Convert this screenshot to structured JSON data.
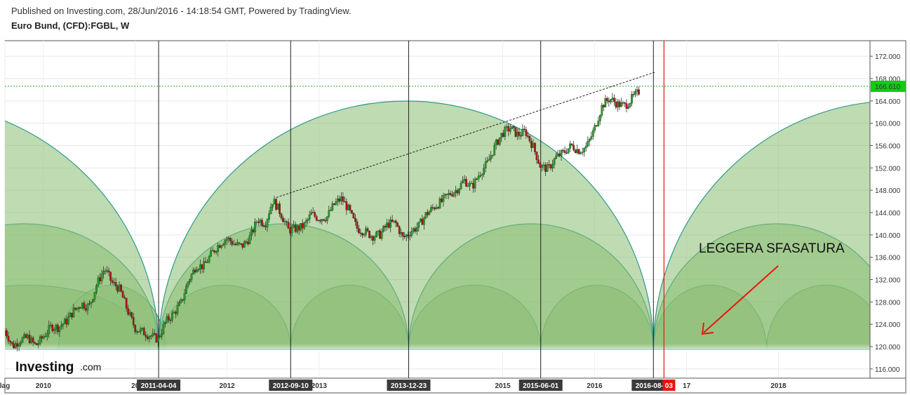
{
  "header": {
    "published": "Published on Investing.com, 28/Jun/2016 - 14:18:54 GMT, Powered by TradingView.",
    "instrument": "Euro Bund, (CFD):FGBL, W"
  },
  "logo": {
    "brand": "Investing",
    "suffix": ".com"
  },
  "annotation": {
    "text": "LEGGERA SFASATURA",
    "arrow_color": "#e8160c"
  },
  "colors": {
    "up": "#1f9e1f",
    "down": "#b21414",
    "cycle_fill": "#8bbd73",
    "cycle_stroke": "#2e9a8a",
    "price_line": "#22aa22",
    "red_line": "#e8160c"
  },
  "chart_data": {
    "type": "candlestick",
    "ylim": [
      115,
      173.5
    ],
    "y_ticks": [
      "172.000",
      "168.000",
      "164.000",
      "160.000",
      "156.000",
      "152.000",
      "148.000",
      "144.000",
      "140.000",
      "136.000",
      "132.000",
      "128.000",
      "124.000",
      "120.000",
      "116.000"
    ],
    "y_tick_values": [
      172,
      168,
      164,
      160,
      156,
      152,
      148,
      144,
      140,
      136,
      132,
      128,
      124,
      120,
      116
    ],
    "x_start": "2009-08-01",
    "x_end": "2018-12-31",
    "x_ticks": [
      {
        "label": "lag",
        "date": "2009-08-01"
      },
      {
        "label": "2010",
        "date": "2010-01-01"
      },
      {
        "label": "20",
        "date": "2011-01-01"
      },
      {
        "label": "2012",
        "date": "2012-01-01"
      },
      {
        "label": "2013",
        "date": "2013-01-01"
      },
      {
        "label": "2015",
        "date": "2015-01-01"
      },
      {
        "label": "2016",
        "date": "2016-01-01"
      },
      {
        "label": "17",
        "date": "2017-01-01"
      },
      {
        "label": "2018",
        "date": "2018-01-01"
      }
    ],
    "vertical_markers": [
      {
        "label": "2011-04-04",
        "date": "2011-04-04"
      },
      {
        "label": "2012-09-10",
        "date": "2012-09-10"
      },
      {
        "label": "2013-12-23",
        "date": "2013-12-23"
      },
      {
        "label": "2015-06-01",
        "date": "2015-06-01"
      },
      {
        "label": "2016-08-22",
        "date": "2016-08-22"
      }
    ],
    "red_marker": {
      "label": "03",
      "date": "2016-10-03"
    },
    "current_price": {
      "label": "166.610",
      "value": 166.61
    },
    "trendline": [
      {
        "date": "2012-07-15",
        "value": 146.7
      },
      {
        "date": "2016-09-01",
        "value": 169.2
      }
    ],
    "cycles": [
      {
        "start": "2008-07-01",
        "end": "2011-03-01",
        "peak": 131
      },
      {
        "start": "2010-03-01",
        "end": "2011-05-01",
        "peak": 131
      },
      {
        "start": "2011-04-01",
        "end": "2012-09-10",
        "peak": 131
      },
      {
        "start": "2012-09-10",
        "end": "2013-12-23",
        "peak": 131
      },
      {
        "start": "2013-12-23",
        "end": "2015-06-01",
        "peak": 131
      },
      {
        "start": "2015-06-01",
        "end": "2016-08-22",
        "peak": 131
      },
      {
        "start": "2016-08-22",
        "end": "2017-11-15",
        "peak": 131
      },
      {
        "start": "2017-11-15",
        "end": "2019-03-01",
        "peak": 131
      },
      {
        "start": "2008-05-01",
        "end": "2011-04-04",
        "peak": 142
      },
      {
        "start": "2011-04-04",
        "end": "2013-12-23",
        "peak": 142
      },
      {
        "start": "2013-12-23",
        "end": "2016-08-22",
        "peak": 142
      },
      {
        "start": "2016-08-22",
        "end": "2019-05-01",
        "peak": 142
      },
      {
        "start": "2005-10-01",
        "end": "2011-04-04",
        "peak": 164
      },
      {
        "start": "2011-04-04",
        "end": "2016-08-22",
        "peak": 164
      },
      {
        "start": "2016-08-22",
        "end": "2021-12-01",
        "peak": 164
      }
    ],
    "cycle_base": 119.5,
    "price_path": [
      [
        "2009-08-01",
        122.0
      ],
      [
        "2009-09-01",
        119.5
      ],
      [
        "2009-10-01",
        121.5
      ],
      [
        "2009-11-01",
        122.5
      ],
      [
        "2009-12-01",
        121.0
      ],
      [
        "2010-01-01",
        122.0
      ],
      [
        "2010-02-01",
        123.0
      ],
      [
        "2010-03-01",
        122.5
      ],
      [
        "2010-04-01",
        123.8
      ],
      [
        "2010-05-01",
        126.5
      ],
      [
        "2010-06-01",
        128.5
      ],
      [
        "2010-07-01",
        128.0
      ],
      [
        "2010-08-01",
        131.5
      ],
      [
        "2010-09-01",
        133.5
      ],
      [
        "2010-10-01",
        130.5
      ],
      [
        "2010-11-01",
        129.5
      ],
      [
        "2010-12-01",
        126.5
      ],
      [
        "2011-01-01",
        124.0
      ],
      [
        "2011-02-01",
        123.5
      ],
      [
        "2011-03-01",
        122.5
      ],
      [
        "2011-04-01",
        121.0
      ],
      [
        "2011-05-01",
        123.5
      ],
      [
        "2011-06-01",
        125.0
      ],
      [
        "2011-07-01",
        127.5
      ],
      [
        "2011-08-01",
        132.5
      ],
      [
        "2011-09-01",
        135.5
      ],
      [
        "2011-10-01",
        135.0
      ],
      [
        "2011-11-01",
        136.5
      ],
      [
        "2011-12-01",
        137.5
      ],
      [
        "2012-01-01",
        138.5
      ],
      [
        "2012-02-01",
        138.0
      ],
      [
        "2012-03-01",
        138.5
      ],
      [
        "2012-04-01",
        140.5
      ],
      [
        "2012-05-01",
        143.5
      ],
      [
        "2012-06-01",
        142.0
      ],
      [
        "2012-07-01",
        145.5
      ],
      [
        "2012-08-01",
        143.0
      ],
      [
        "2012-09-01",
        140.5
      ],
      [
        "2012-10-01",
        141.5
      ],
      [
        "2012-11-01",
        142.5
      ],
      [
        "2012-12-01",
        144.5
      ],
      [
        "2013-01-01",
        143.0
      ],
      [
        "2013-02-01",
        142.5
      ],
      [
        "2013-03-01",
        144.5
      ],
      [
        "2013-04-01",
        146.0
      ],
      [
        "2013-05-01",
        144.5
      ],
      [
        "2013-06-01",
        142.0
      ],
      [
        "2013-07-01",
        141.5
      ],
      [
        "2013-08-01",
        140.0
      ],
      [
        "2013-09-01",
        139.5
      ],
      [
        "2013-10-01",
        141.0
      ],
      [
        "2013-11-01",
        141.5
      ],
      [
        "2013-12-01",
        139.5
      ],
      [
        "2014-01-01",
        141.5
      ],
      [
        "2014-02-01",
        142.5
      ],
      [
        "2014-03-01",
        144.0
      ],
      [
        "2014-04-01",
        144.5
      ],
      [
        "2014-05-01",
        145.0
      ],
      [
        "2014-06-01",
        146.5
      ],
      [
        "2014-07-01",
        148.0
      ],
      [
        "2014-08-01",
        150.5
      ],
      [
        "2014-09-01",
        149.5
      ],
      [
        "2014-10-01",
        151.5
      ],
      [
        "2014-11-01",
        152.5
      ],
      [
        "2014-12-01",
        155.0
      ],
      [
        "2015-01-01",
        157.5
      ],
      [
        "2015-02-01",
        159.0
      ],
      [
        "2015-03-01",
        158.5
      ],
      [
        "2015-04-01",
        159.5
      ],
      [
        "2015-05-01",
        156.5
      ],
      [
        "2015-06-01",
        152.0
      ],
      [
        "2015-07-01",
        151.0
      ],
      [
        "2015-08-01",
        153.0
      ],
      [
        "2015-09-01",
        154.5
      ],
      [
        "2015-10-01",
        156.5
      ],
      [
        "2015-11-01",
        156.0
      ],
      [
        "2015-12-01",
        156.5
      ],
      [
        "2016-01-01",
        159.0
      ],
      [
        "2016-02-01",
        162.5
      ],
      [
        "2016-03-01",
        163.5
      ],
      [
        "2016-04-01",
        163.0
      ],
      [
        "2016-05-01",
        163.5
      ],
      [
        "2016-06-01",
        165.5
      ],
      [
        "2016-06-28",
        166.61
      ]
    ]
  }
}
